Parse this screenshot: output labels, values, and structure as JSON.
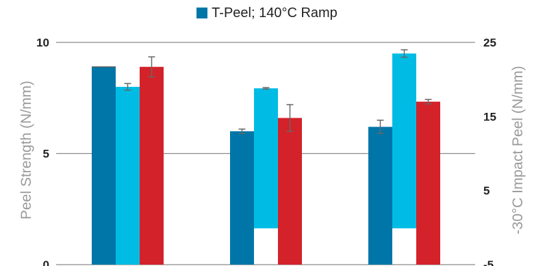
{
  "chart_data": {
    "type": "bar",
    "legend": {
      "label": "T-Peel; 140°C Ramp",
      "color": "#0076a8",
      "placement": "top-center"
    },
    "ylabel_left": "Peel Strength (N/mm)",
    "ylabel_right": "-30°C Impact Peel (N/mm)",
    "left_ticks": [
      "0",
      "5",
      "10"
    ],
    "right_ticks": [
      "-5",
      "5",
      "15",
      "25"
    ],
    "left_range": [
      0,
      10
    ],
    "right_range": [
      -5,
      25
    ],
    "grid": true,
    "groups": [
      {
        "bars": [
          {
            "axis": "left",
            "value": 8.9,
            "err": 0,
            "color": "#0076a8"
          },
          {
            "axis": "left",
            "value": 8.0,
            "err": 0.15,
            "color": "#00bce4"
          },
          {
            "axis": "left",
            "value": 8.9,
            "err": 0.45,
            "color": "#d3222a"
          }
        ]
      },
      {
        "bars": [
          {
            "axis": "left",
            "value": 6.0,
            "err": 0.1,
            "color": "#0076a8"
          },
          {
            "axis": "right",
            "value": 18.8,
            "base": -0.1,
            "err": 0.1,
            "color": "#00bce4"
          },
          {
            "axis": "right",
            "value": 14.8,
            "err": 1.8,
            "color": "#d3222a"
          }
        ]
      },
      {
        "bars": [
          {
            "axis": "right",
            "value": 13.6,
            "err": 0.9,
            "color": "#0076a8"
          },
          {
            "axis": "right",
            "value": 23.5,
            "base": -0.1,
            "err": 0.5,
            "color": "#00bce4"
          },
          {
            "axis": "right",
            "value": 17.0,
            "err": 0.3,
            "color": "#d3222a"
          }
        ]
      }
    ]
  }
}
